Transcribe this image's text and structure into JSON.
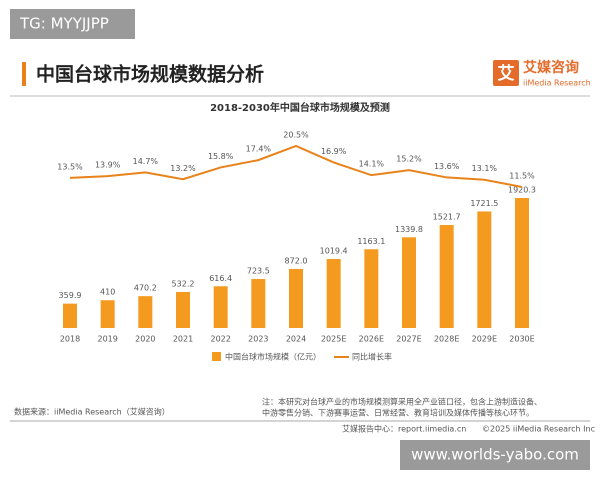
{
  "watermark_top": "TG: MYYJJPP",
  "header": {
    "title": "中国台球市场规模数据分析",
    "logo_mark": "艾",
    "logo_name": "艾媒咨询",
    "logo_sub": "iiMedia Research"
  },
  "chart_data": {
    "type": "bar",
    "title": "2018-2030年中国台球市场规模及预测",
    "categories": [
      "2018",
      "2019",
      "2020",
      "2021",
      "2022",
      "2023",
      "2024",
      "2025E",
      "2026E",
      "2027E",
      "2028E",
      "2029E",
      "2030E"
    ],
    "series": [
      {
        "name": "中国台球市场规模（亿元）",
        "type": "bar",
        "color": "#f39a1f",
        "values": [
          359.9,
          410,
          470.2,
          532.2,
          616.4,
          723.5,
          872.0,
          1019.4,
          1163.1,
          1339.8,
          1521.7,
          1721.5,
          1920.3
        ],
        "value_labels": [
          "359.9",
          "410",
          "470.2",
          "532.2",
          "616.4",
          "723.5",
          "872.0",
          "1019.4",
          "1163.1",
          "1339.8",
          "1521.7",
          "1721.5",
          "1920.3"
        ]
      },
      {
        "name": "同比增长率",
        "type": "line",
        "color": "#e8821a",
        "values": [
          13.5,
          13.9,
          14.7,
          13.2,
          15.8,
          17.4,
          20.5,
          16.9,
          14.1,
          15.2,
          13.6,
          13.1,
          11.5
        ],
        "value_labels": [
          "13.5%",
          "13.9%",
          "14.7%",
          "13.2%",
          "15.8%",
          "17.4%",
          "20.5%",
          "16.9%",
          "14.1%",
          "15.2%",
          "13.6%",
          "13.1%",
          "11.5%"
        ]
      }
    ]
  },
  "notes": [
    "注：本研究对台球产业的市场规模测算采用全产业链口径，包含上游制造设备、",
    "中游零售分销、下游赛事运营、日常经营、教育培训及媒体传播等核心环节。"
  ],
  "source": "数据来源：iiMedia Research（艾媒咨询）",
  "footer": {
    "left": "艾媒报告中心：report.iimedia.cn",
    "right": "©2025  iiMedia Research  Inc"
  },
  "watermark_bottom": "www.worlds-yabo.com"
}
